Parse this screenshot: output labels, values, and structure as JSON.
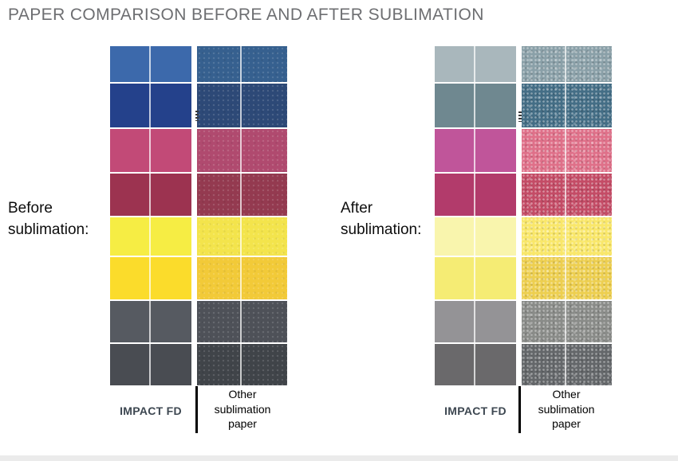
{
  "title": "PAPER COMPARISON BEFORE AND AFTER SUBLIMATION",
  "panels": [
    {
      "id": "before",
      "caption": [
        "Before",
        "sublimation:"
      ],
      "impact_label": "IMPACT FD",
      "other_label": [
        "Other",
        "sublimation",
        "paper"
      ],
      "other_texture": "light",
      "rows": [
        {
          "name": "blue",
          "impact": "#3c69ab",
          "other": "#36608f"
        },
        {
          "name": "dark-blue",
          "impact": "#24418b",
          "other": "#2d4977"
        },
        {
          "name": "magenta",
          "impact": "#c24a77",
          "other": "#b04a6f"
        },
        {
          "name": "dark-red",
          "impact": "#9c3350",
          "other": "#943a50"
        },
        {
          "name": "yellow",
          "impact": "#f6ed44",
          "other": "#f3e44c"
        },
        {
          "name": "golden-yellow",
          "impact": "#fbdc2b",
          "other": "#f2ca38"
        },
        {
          "name": "gray",
          "impact": "#565a61",
          "other": "#4e5158"
        },
        {
          "name": "dark-gray",
          "impact": "#494c52",
          "other": "#404449"
        }
      ]
    },
    {
      "id": "after",
      "caption": [
        "After",
        "sublimation:"
      ],
      "impact_label": "IMPACT FD",
      "other_label": [
        "Other",
        "sublimation",
        "paper"
      ],
      "other_texture": "heavy",
      "rows": [
        {
          "name": "blue",
          "impact": "#a9b7bc",
          "other": "#8aa0a8"
        },
        {
          "name": "dark-blue",
          "impact": "#6f8890",
          "other": "#446e86"
        },
        {
          "name": "magenta",
          "impact": "#c0559a",
          "other": "#df7089"
        },
        {
          "name": "dark-red",
          "impact": "#b23b6b",
          "other": "#c44c66"
        },
        {
          "name": "yellow",
          "impact": "#f9f5ad",
          "other": "#f9e76a"
        },
        {
          "name": "golden-yellow",
          "impact": "#f5ec74",
          "other": "#edcf50"
        },
        {
          "name": "gray",
          "impact": "#949396",
          "other": "#8a8c89"
        },
        {
          "name": "dark-gray",
          "impact": "#6a696b",
          "other": "#64676a"
        }
      ]
    }
  ]
}
